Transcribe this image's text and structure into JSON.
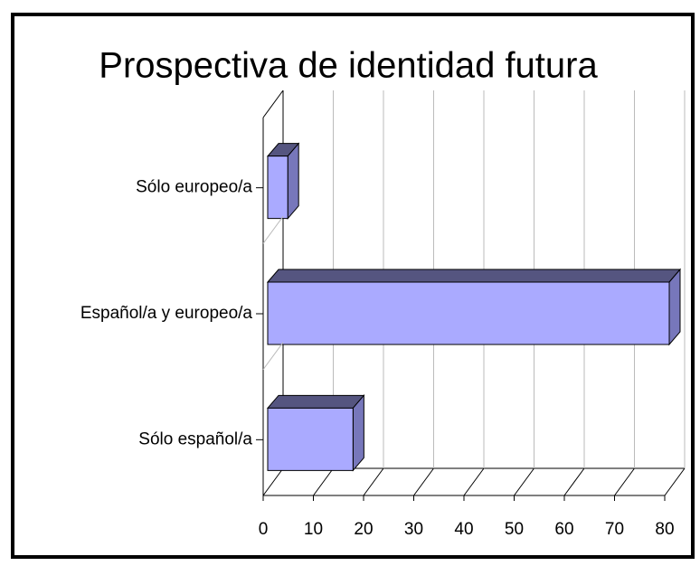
{
  "chart_data": {
    "type": "bar3d_horizontal",
    "title": "Prospectiva de identidad futura",
    "categories": [
      "Sólo europeo/a",
      "Español/a y europeo/a",
      "Sólo español/a"
    ],
    "values": [
      4,
      80,
      17
    ],
    "color": "#aaaaff",
    "top_color": "#555580",
    "side_color": "#7777bb",
    "xlim": [
      0,
      80
    ],
    "xticks": [
      0,
      10,
      20,
      30,
      40,
      50,
      60,
      70,
      80
    ],
    "grid": true
  }
}
